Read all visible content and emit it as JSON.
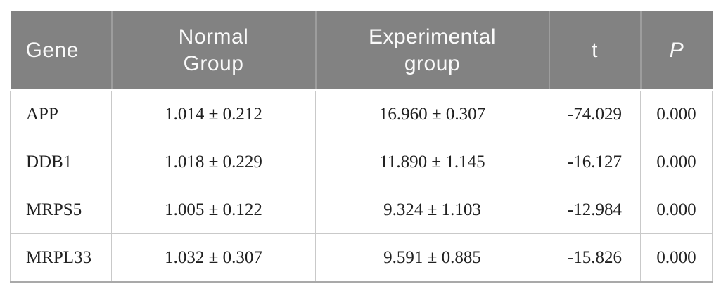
{
  "table": {
    "description": "Gene expression statistics table comparing normal and experimental groups",
    "columns": [
      {
        "key": "gene",
        "label": "Gene"
      },
      {
        "key": "normal",
        "label": "Normal Group"
      },
      {
        "key": "experimental",
        "label": "Experimental group"
      },
      {
        "key": "t",
        "label": "t"
      },
      {
        "key": "p",
        "label": "P"
      }
    ],
    "rows": [
      {
        "gene": "APP",
        "normal": "1.014 ± 0.212",
        "experimental": "16.960 ± 0.307",
        "t": "-74.029",
        "p": "0.000"
      },
      {
        "gene": "DDB1",
        "normal": "1.018 ± 0.229",
        "experimental": "11.890 ± 1.145",
        "t": "-16.127",
        "p": "0.000"
      },
      {
        "gene": "MRPS5",
        "normal": "1.005 ± 0.122",
        "experimental": "9.324 ± 1.103",
        "t": "-12.984",
        "p": "0.000"
      },
      {
        "gene": "MRPL33",
        "normal": "1.032 ± 0.307",
        "experimental": "9.591 ± 0.885",
        "t": "-15.826",
        "p": "0.000"
      }
    ],
    "colors": {
      "header_background": "#828282",
      "header_text": "#fafafa",
      "header_divider": "#9d9d9d",
      "body_text": "#212121",
      "body_border": "#c9c9c9",
      "bottom_border": "#a9a9a9"
    }
  }
}
